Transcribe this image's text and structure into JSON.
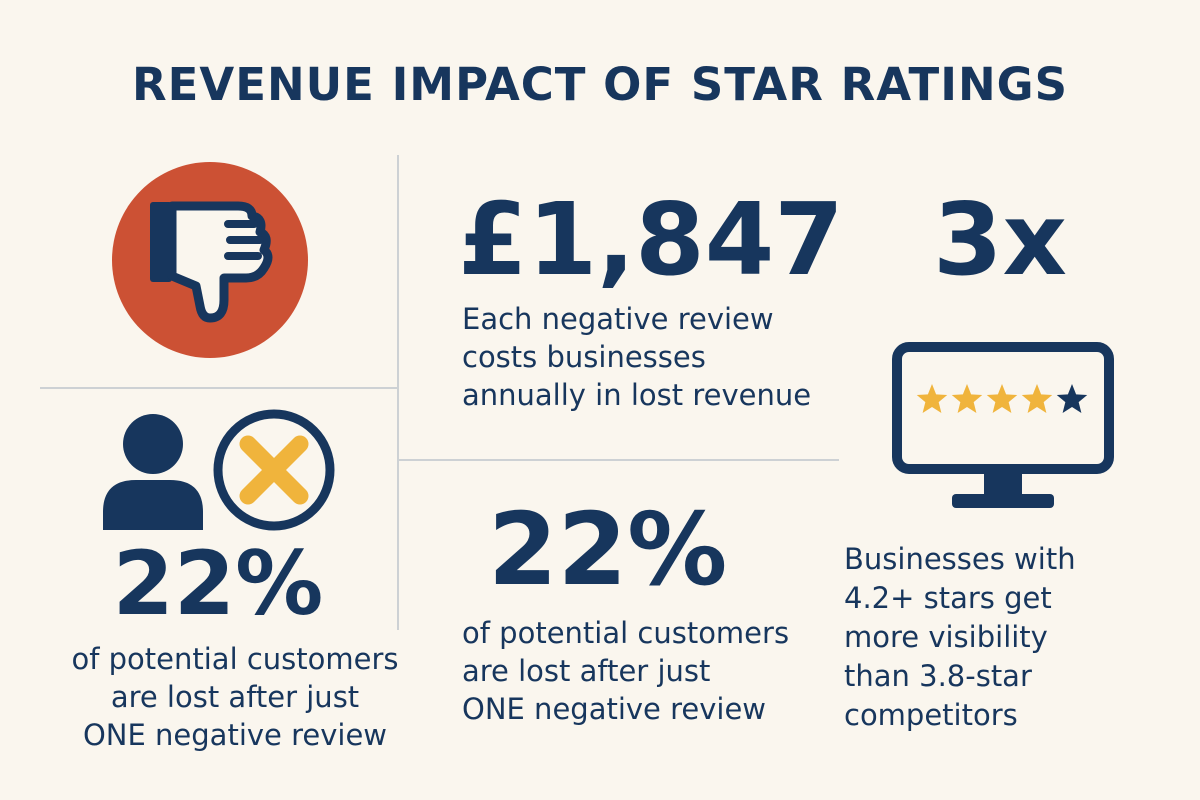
{
  "title": "REVENUE IMPACT OF STAR RATINGS",
  "colors": {
    "navy": "#17365d",
    "red": "#cc5134",
    "amber": "#f0b43c",
    "background": "#faf6ee",
    "divider": "#cdd1d4"
  },
  "icons": {
    "thumbs_down": "thumbs-down-icon",
    "person": "person-icon",
    "reject": "x-circle-icon",
    "monitor": "monitor-icon",
    "star": "star-icon"
  },
  "left_stat": {
    "value": "22%",
    "lines": [
      "of potential customers",
      "are lost after just",
      "ONE negative review"
    ]
  },
  "cost_stat": {
    "value": "£1,847",
    "lines": [
      "Each negative review",
      "costs businesses",
      "annually in lost revenue"
    ]
  },
  "middle_stat": {
    "value": "22%",
    "lines": [
      "of potential customers",
      "are lost after just",
      "ONE negative review"
    ]
  },
  "visibility_stat": {
    "value": "3x",
    "lines": [
      "Businesses with",
      "4.2+ stars get",
      "more visibility",
      "than 3.8-star",
      "competitors"
    ],
    "rating_stars": 5,
    "filled_stars": 4
  }
}
